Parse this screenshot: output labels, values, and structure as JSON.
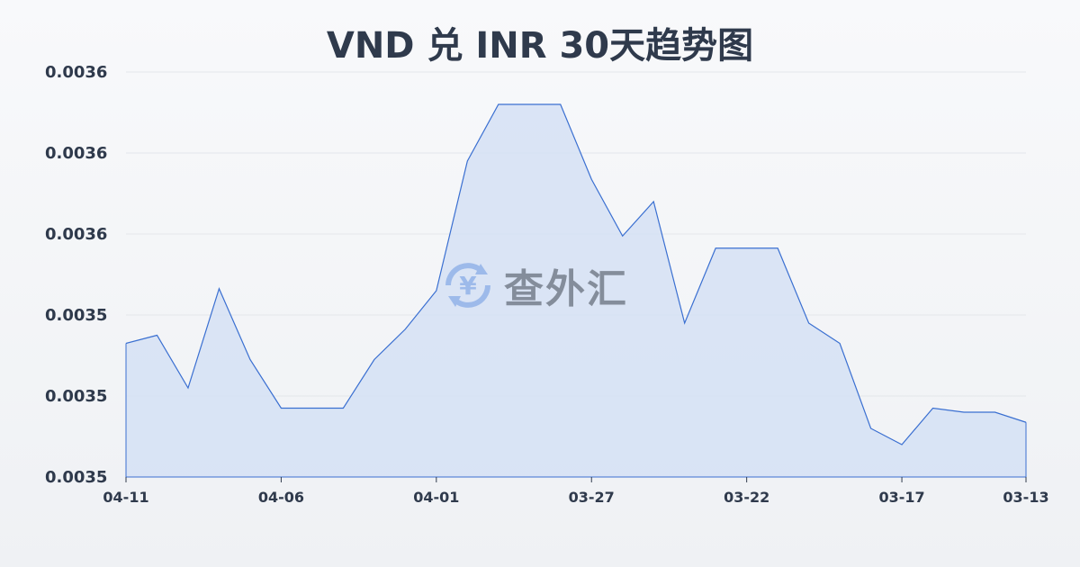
{
  "chart_data": {
    "type": "area",
    "title": "VND 兑 INR 30天趋势图",
    "xlabel": "",
    "ylabel": "",
    "x": [
      "04-11",
      "04-10",
      "04-09",
      "04-08",
      "04-07",
      "04-06",
      "04-05",
      "04-04",
      "04-03",
      "04-02",
      "04-01",
      "03-31",
      "03-30",
      "03-29",
      "03-28",
      "03-27",
      "03-26",
      "03-25",
      "03-24",
      "03-23",
      "03-22",
      "03-21",
      "03-20",
      "03-19",
      "03-18",
      "03-17",
      "03-16",
      "03-15",
      "03-14",
      "03-13"
    ],
    "values": [
      0.0035466,
      0.003547,
      0.0035444,
      0.0035493,
      0.0035458,
      0.0035434,
      0.0035434,
      0.0035434,
      0.0035458,
      0.0035473,
      0.0035492,
      0.0035556,
      0.0035584,
      0.0035584,
      0.0035584,
      0.0035547,
      0.0035519,
      0.0035536,
      0.0035476,
      0.0035513,
      0.0035513,
      0.0035513,
      0.0035476,
      0.0035466,
      0.0035424,
      0.0035416,
      0.0035434,
      0.0035432,
      0.0035432,
      0.0035427
    ],
    "ylim": [
      0.00354,
      0.00356
    ],
    "y_ticks": [
      0.00354,
      0.003544,
      0.003548,
      0.003552,
      0.003556,
      0.00356
    ],
    "y_tick_labels": [
      "0.0035",
      "0.0035",
      "0.0035",
      "0.0036",
      "0.0036",
      "0.0036"
    ],
    "x_tick_labels": [
      "04-11",
      "04-06",
      "04-01",
      "03-27",
      "03-22",
      "03-17",
      "03-13"
    ],
    "x_tick_indices": [
      0,
      5,
      10,
      15,
      20,
      25,
      29
    ],
    "grid": true,
    "line_color": "#3a6fd1",
    "fill_color": "#d5e0f5"
  },
  "watermark": {
    "text": "查外汇",
    "icon": "yen-exchange-icon"
  }
}
